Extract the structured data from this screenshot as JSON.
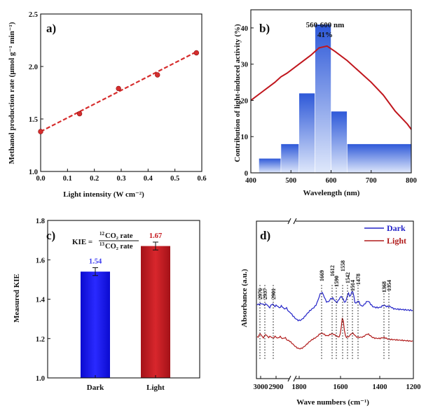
{
  "chart_data": [
    {
      "panel": "a)",
      "type": "scatter",
      "xlabel": "Light intensity (W cm⁻²)",
      "ylabel": "Methanol production rate (μmol g⁻¹ min⁻¹)",
      "xlim": [
        0.0,
        0.6
      ],
      "ylim": [
        1.0,
        2.5
      ],
      "xticks": [
        "0.0",
        "0.1",
        "0.2",
        "0.3",
        "0.4",
        "0.5",
        "0.6"
      ],
      "yticks": [
        "1.0",
        "1.5",
        "2.0",
        "2.5"
      ],
      "x": [
        0.0,
        0.145,
        0.29,
        0.435,
        0.58
      ],
      "y": [
        1.38,
        1.55,
        1.79,
        1.92,
        2.13
      ],
      "fit": {
        "x": [
          0.0,
          0.58
        ],
        "y": [
          1.38,
          2.14
        ]
      },
      "color": "#d62d2d"
    },
    {
      "panel": "b)",
      "type": "bar",
      "xlabel": "Wavelength (nm)",
      "ylabel": "Contribution of light-induced activity (%)",
      "xlim": [
        400,
        800
      ],
      "ylim": [
        0,
        45
      ],
      "xticks": [
        "400",
        "500",
        "600",
        "700",
        "800"
      ],
      "yticks": [
        "0",
        "10",
        "20",
        "30",
        "40"
      ],
      "bins": [
        {
          "from": 420,
          "to": 475,
          "value": 4
        },
        {
          "from": 475,
          "to": 520,
          "value": 8
        },
        {
          "from": 520,
          "to": 560,
          "value": 22
        },
        {
          "from": 560,
          "to": 600,
          "value": 41
        },
        {
          "from": 600,
          "to": 640,
          "value": 17
        },
        {
          "from": 640,
          "to": 800,
          "value": 8
        }
      ],
      "annotation": [
        "560-600 nm",
        "41%"
      ],
      "spectrum": {
        "x": [
          400,
          430,
          460,
          475,
          490,
          520,
          550,
          570,
          590,
          610,
          640,
          670,
          700,
          730,
          760,
          790,
          800
        ],
        "y": [
          20,
          22.5,
          25,
          26.5,
          27.5,
          30,
          32.5,
          34.5,
          35,
          33.5,
          31,
          28,
          25,
          21.5,
          17,
          13.5,
          12
        ]
      },
      "colors": {
        "bar": "#2d58d8",
        "line": "#c0161d"
      }
    },
    {
      "panel": "c)",
      "type": "bar",
      "ylabel": "Measured KIE",
      "categories": [
        "Dark",
        "Light"
      ],
      "values": [
        1.54,
        1.67
      ],
      "errors": [
        0.02,
        0.02
      ],
      "value_labels": [
        "1.54",
        "1.67"
      ],
      "ylim": [
        1.0,
        1.8
      ],
      "yticks": [
        "1.0",
        "1.2",
        "1.4",
        "1.6",
        "1.8"
      ],
      "formula": {
        "lhs": "KIE =",
        "num_mass": "12",
        "num_rest": "CO₂ rate",
        "den_mass": "13",
        "den_rest": "CO₂ rate"
      },
      "colors": [
        "#1010e8",
        "#c4161c"
      ]
    },
    {
      "panel": "d)",
      "type": "line",
      "xlabel": "Wave numbers (cm⁻¹)",
      "ylabel": "Absorbance (a.u.)",
      "xticks": [
        "3000",
        "2900",
        "1800",
        "1600",
        "1400",
        "1200"
      ],
      "axis_break": "//",
      "series": [
        {
          "name": "Dark",
          "color": "#2424c8"
        },
        {
          "name": "Light",
          "color": "#b01a1a"
        }
      ],
      "peak_labels": [
        "2976",
        "2937",
        "2901",
        "1669",
        "1612",
        "1590",
        "1558",
        "1542",
        "1514",
        "1478",
        "1368",
        "1354"
      ]
    }
  ]
}
